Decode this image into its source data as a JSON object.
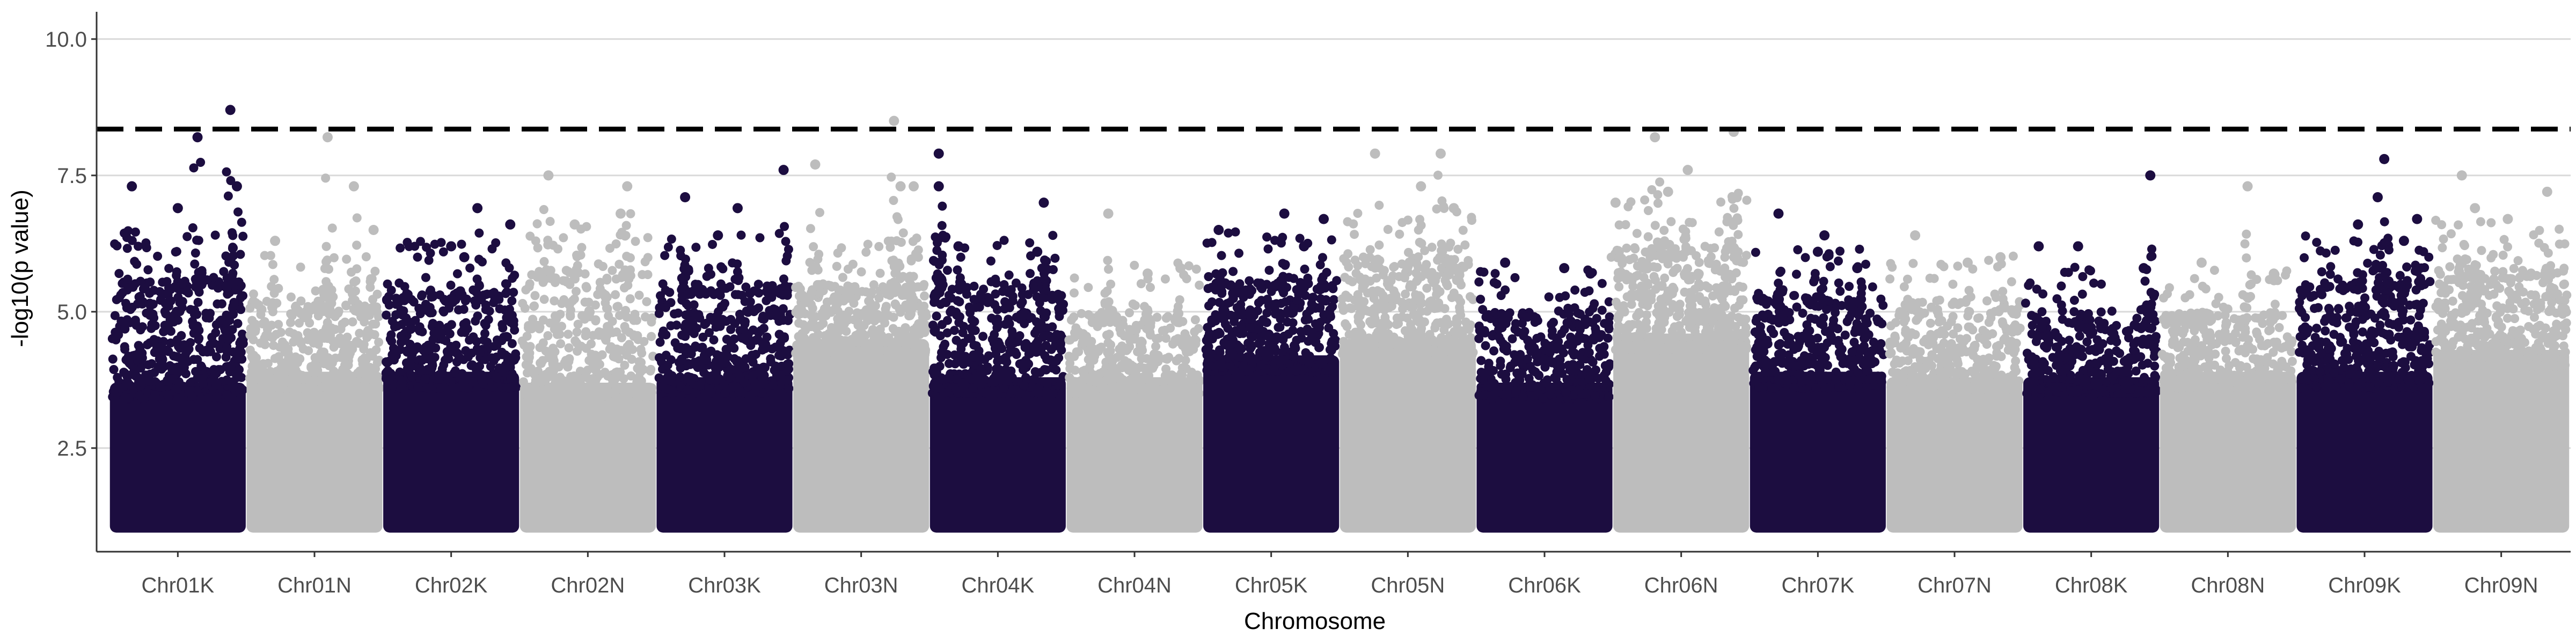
{
  "chart_data": {
    "type": "scatter",
    "subtype": "manhattan",
    "title": "",
    "xlabel": "Chromosome",
    "ylabel": "-log10(p value)",
    "ylim": [
      0.6,
      10.5
    ],
    "yticks": [
      {
        "value": 2.5,
        "label": "2.5"
      },
      {
        "value": 5.0,
        "label": "5.0"
      },
      {
        "value": 7.5,
        "label": "7.5"
      },
      {
        "value": 10.0,
        "label": "10.0"
      }
    ],
    "threshold": 8.35,
    "grid": "horizontal-major",
    "baseline_min": 1.0,
    "colors": {
      "dark": "#1c0d40",
      "light": "#bdbdbd",
      "threshold": "#000000",
      "grid": "#d9d9d9",
      "axis": "#333333"
    },
    "categories": [
      "Chr01K",
      "Chr01N",
      "Chr02K",
      "Chr02N",
      "Chr03K",
      "Chr03N",
      "Chr04K",
      "Chr04N",
      "Chr05K",
      "Chr05N",
      "Chr06K",
      "Chr06N",
      "Chr07K",
      "Chr07N",
      "Chr08K",
      "Chr08N",
      "Chr09K",
      "Chr09N"
    ],
    "series": [
      {
        "name": "Chr01K",
        "color": "dark",
        "solid_top": 3.7,
        "spread_top": 5.6,
        "n_points": 420,
        "peaks": [
          [
            0.15,
            7.3
          ],
          [
            0.65,
            8.2
          ],
          [
            0.9,
            8.7
          ],
          [
            0.5,
            6.9
          ],
          [
            0.95,
            7.3
          ]
        ]
      },
      {
        "name": "Chr01N",
        "color": "light",
        "solid_top": 3.9,
        "spread_top": 5.2,
        "n_points": 340,
        "peaks": [
          [
            0.8,
            7.3
          ],
          [
            0.6,
            8.2
          ],
          [
            0.2,
            6.3
          ],
          [
            0.95,
            6.5
          ]
        ]
      },
      {
        "name": "Chr02K",
        "color": "dark",
        "solid_top": 3.9,
        "spread_top": 5.4,
        "n_points": 380,
        "peaks": [
          [
            0.7,
            6.9
          ],
          [
            0.95,
            6.6
          ],
          [
            0.5,
            6.2
          ],
          [
            0.6,
            6.0
          ]
        ]
      },
      {
        "name": "Chr02N",
        "color": "light",
        "solid_top": 3.7,
        "spread_top": 5.8,
        "n_points": 380,
        "peaks": [
          [
            0.2,
            7.5
          ],
          [
            0.8,
            7.3
          ],
          [
            0.4,
            6.6
          ],
          [
            0.75,
            6.8
          ]
        ]
      },
      {
        "name": "Chr03K",
        "color": "dark",
        "solid_top": 3.8,
        "spread_top": 5.5,
        "n_points": 380,
        "peaks": [
          [
            0.2,
            7.1
          ],
          [
            0.6,
            6.9
          ],
          [
            0.95,
            7.6
          ],
          [
            0.45,
            6.4
          ]
        ]
      },
      {
        "name": "Chr03N",
        "color": "light",
        "solid_top": 4.5,
        "spread_top": 5.5,
        "n_points": 360,
        "peaks": [
          [
            0.75,
            8.5
          ],
          [
            0.15,
            7.7
          ],
          [
            0.9,
            7.3
          ],
          [
            0.8,
            7.3
          ]
        ]
      },
      {
        "name": "Chr04K",
        "color": "dark",
        "solid_top": 3.8,
        "spread_top": 5.6,
        "n_points": 400,
        "peaks": [
          [
            0.05,
            7.9
          ],
          [
            0.05,
            7.3
          ],
          [
            0.85,
            7.0
          ],
          [
            0.2,
            6.2
          ],
          [
            0.8,
            6.1
          ]
        ]
      },
      {
        "name": "Chr04N",
        "color": "light",
        "solid_top": 3.8,
        "spread_top": 5.0,
        "n_points": 320,
        "peaks": [
          [
            0.3,
            6.8
          ],
          [
            0.85,
            5.8
          ],
          [
            0.6,
            5.7
          ]
        ]
      },
      {
        "name": "Chr05K",
        "color": "dark",
        "solid_top": 4.2,
        "spread_top": 5.6,
        "n_points": 400,
        "peaks": [
          [
            0.1,
            6.5
          ],
          [
            0.6,
            6.8
          ],
          [
            0.9,
            6.7
          ],
          [
            0.75,
            6.2
          ]
        ]
      },
      {
        "name": "Chr05N",
        "color": "light",
        "solid_top": 4.5,
        "spread_top": 6.0,
        "n_points": 400,
        "peaks": [
          [
            0.25,
            7.9
          ],
          [
            0.75,
            7.9
          ],
          [
            0.6,
            7.3
          ],
          [
            0.85,
            6.9
          ]
        ]
      },
      {
        "name": "Chr06K",
        "color": "dark",
        "solid_top": 3.7,
        "spread_top": 5.0,
        "n_points": 340,
        "peaks": [
          [
            0.2,
            5.9
          ],
          [
            0.65,
            5.8
          ],
          [
            0.85,
            5.7
          ]
        ]
      },
      {
        "name": "Chr06N",
        "color": "light",
        "solid_top": 4.6,
        "spread_top": 6.2,
        "n_points": 420,
        "peaks": [
          [
            0.3,
            8.2
          ],
          [
            0.55,
            7.6
          ],
          [
            0.9,
            8.3
          ],
          [
            0.0,
            7.0
          ],
          [
            0.4,
            7.2
          ]
        ]
      },
      {
        "name": "Chr07K",
        "color": "dark",
        "solid_top": 3.9,
        "spread_top": 5.3,
        "n_points": 380,
        "peaks": [
          [
            0.2,
            6.8
          ],
          [
            0.55,
            6.4
          ],
          [
            0.5,
            6.1
          ],
          [
            0.8,
            5.8
          ]
        ]
      },
      {
        "name": "Chr07N",
        "color": "light",
        "solid_top": 3.8,
        "spread_top": 5.2,
        "n_points": 340,
        "peaks": [
          [
            0.2,
            6.4
          ],
          [
            0.6,
            5.9
          ],
          [
            0.85,
            6.0
          ]
        ]
      },
      {
        "name": "Chr08K",
        "color": "dark",
        "solid_top": 3.8,
        "spread_top": 4.9,
        "n_points": 340,
        "peaks": [
          [
            0.95,
            7.5
          ],
          [
            0.1,
            6.2
          ],
          [
            0.4,
            6.2
          ],
          [
            0.9,
            5.8
          ]
        ]
      },
      {
        "name": "Chr08N",
        "color": "light",
        "solid_top": 3.9,
        "spread_top": 5.0,
        "n_points": 340,
        "peaks": [
          [
            0.65,
            7.3
          ],
          [
            0.3,
            5.9
          ],
          [
            0.85,
            5.7
          ]
        ]
      },
      {
        "name": "Chr09K",
        "color": "dark",
        "solid_top": 3.9,
        "spread_top": 5.6,
        "n_points": 400,
        "peaks": [
          [
            0.65,
            7.8
          ],
          [
            0.6,
            7.1
          ],
          [
            0.45,
            6.6
          ],
          [
            0.9,
            6.7
          ],
          [
            0.8,
            6.3
          ]
        ]
      },
      {
        "name": "Chr09N",
        "color": "light",
        "solid_top": 4.3,
        "spread_top": 5.8,
        "n_points": 400,
        "peaks": [
          [
            0.2,
            7.5
          ],
          [
            0.85,
            7.2
          ],
          [
            0.55,
            6.7
          ],
          [
            0.3,
            6.9
          ]
        ]
      }
    ]
  }
}
